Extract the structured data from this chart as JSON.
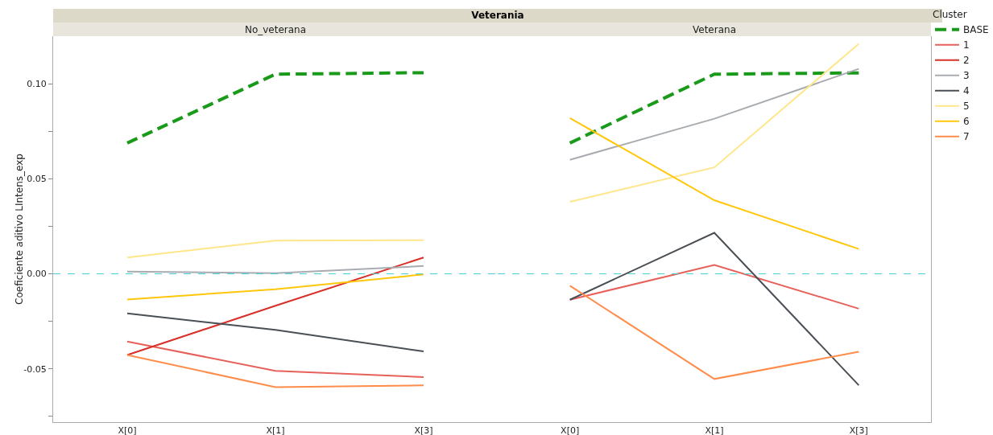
{
  "chart_data": [
    {
      "type": "line",
      "title": "No_veterana",
      "ylabel": "Coeficiente aditivo LIntens_exp",
      "annotations": [
        "Veterania"
      ],
      "categories": [
        "X[0]",
        "X[1]",
        "X[3]"
      ],
      "ylim": [
        -0.078,
        0.125
      ],
      "yticks": [
        {
          "value": -0.075,
          "label": null
        },
        {
          "value": -0.05,
          "label": "-0.05"
        },
        {
          "value": -0.025,
          "label": null
        },
        {
          "value": 0,
          "label": "0.00"
        },
        {
          "value": 0.025,
          "label": null
        },
        {
          "value": 0.05,
          "label": "0.05"
        },
        {
          "value": 0.075,
          "label": null
        },
        {
          "value": 0.1,
          "label": "0.10"
        }
      ],
      "grid": false,
      "marker": "none",
      "legend": false,
      "ref_lines": [
        {
          "axis": "y",
          "value": 0,
          "color": "#40d0d8",
          "line_style": "dashed"
        }
      ],
      "series": [
        {
          "color": "#1a9a1a",
          "line_style": "dashed",
          "values": [
            0.0688,
            0.105,
            0.1058
          ]
        },
        {
          "color": "#e8605a",
          "values": [
            -0.0356,
            -0.051,
            -0.0543
          ]
        },
        {
          "color": "#d83028",
          "values": [
            -0.0427,
            -0.0168,
            0.0086
          ]
        },
        {
          "color": "#a8acb0",
          "values": [
            0.0012,
            0.0003,
            0.0041
          ]
        },
        {
          "color": "#4a4f55",
          "values": [
            -0.0208,
            -0.0295,
            -0.0408
          ]
        },
        {
          "color": "#ffe68a",
          "values": [
            0.0086,
            0.0175,
            0.0177
          ]
        },
        {
          "color": "#ffc60a",
          "values": [
            -0.0135,
            -0.0081,
            -0.0003
          ]
        },
        {
          "color": "#ff8c4a",
          "values": [
            -0.0427,
            -0.0596,
            -0.0587
          ]
        }
      ]
    },
    {
      "type": "line",
      "title": "Veterana",
      "legend_title": "Cluster",
      "categories": [
        "X[0]",
        "X[1]",
        "X[3]"
      ],
      "ylim": [
        -0.078,
        0.125
      ],
      "yticks": [
        {
          "value": -0.075,
          "label": null
        },
        {
          "value": -0.05,
          "label": null
        },
        {
          "value": -0.025,
          "label": null
        },
        {
          "value": 0,
          "label": null
        },
        {
          "value": 0.025,
          "label": null
        },
        {
          "value": 0.05,
          "label": null
        },
        {
          "value": 0.075,
          "label": null
        },
        {
          "value": 0.1,
          "label": null
        }
      ],
      "tick_labels": "x",
      "grid": false,
      "marker": "none",
      "legend": "right",
      "ref_lines": [
        {
          "axis": "y",
          "value": 0,
          "color": "#40d0d8",
          "line_style": "dashed"
        }
      ],
      "series": [
        {
          "name": "BASE",
          "color": "#1a9a1a",
          "line_style": "dashed",
          "values": [
            0.0688,
            0.105,
            0.1057
          ]
        },
        {
          "name": "1",
          "color": "#e8605a",
          "values": [
            -0.0136,
            0.0047,
            -0.0183
          ]
        },
        {
          "name": "2",
          "color": "#d83028",
          "values": [
            null,
            null,
            null
          ]
        },
        {
          "name": "3",
          "color": "#a8acb0",
          "values": [
            0.06,
            0.0816,
            0.1078
          ]
        },
        {
          "name": "4",
          "color": "#4a4f55",
          "values": [
            -0.0136,
            0.0216,
            -0.0586
          ]
        },
        {
          "name": "5",
          "color": "#ffe68a",
          "values": [
            0.0379,
            0.056,
            0.121
          ]
        },
        {
          "name": "6",
          "color": "#ffc60a",
          "values": [
            0.0819,
            0.0387,
            0.0131
          ]
        },
        {
          "name": "7",
          "color": "#ff8c4a",
          "values": [
            -0.0063,
            -0.0553,
            -0.041
          ]
        }
      ]
    }
  ]
}
